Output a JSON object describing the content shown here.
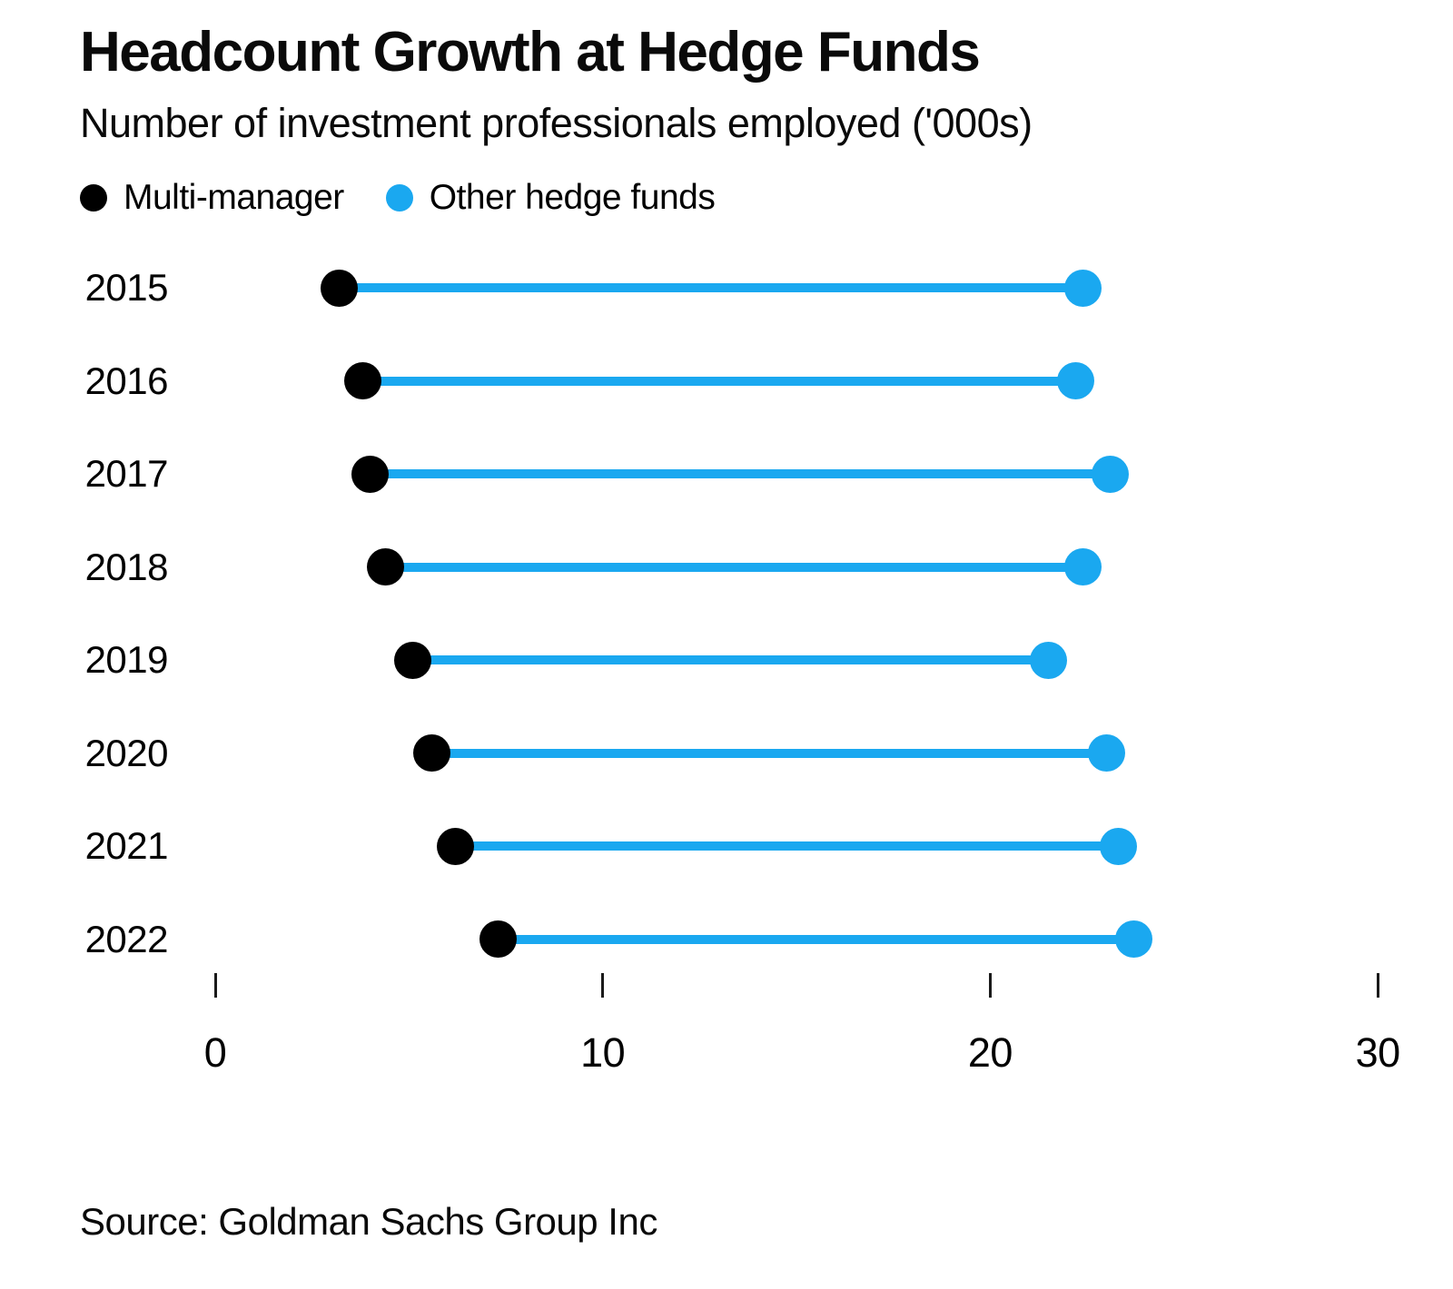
{
  "header": {
    "title": "Headcount Growth at Hedge Funds",
    "subtitle": "Number of investment professionals employed ('000s)"
  },
  "legend": [
    {
      "label": "Multi-manager",
      "color": "#000000"
    },
    {
      "label": "Other hedge funds",
      "color": "#1aa8f0"
    }
  ],
  "chart_data": {
    "type": "dumbbell",
    "orientation": "horizontal",
    "categories": [
      "2015",
      "2016",
      "2017",
      "2018",
      "2019",
      "2020",
      "2021",
      "2022"
    ],
    "series": [
      {
        "name": "Multi-manager",
        "color": "#000000",
        "values": [
          3.2,
          3.8,
          4.0,
          4.4,
          5.1,
          5.6,
          6.2,
          7.3
        ]
      },
      {
        "name": "Other hedge funds",
        "color": "#1aa8f0",
        "values": [
          22.4,
          22.2,
          23.1,
          22.4,
          21.5,
          23.0,
          23.3,
          23.7
        ]
      }
    ],
    "connector_color": "#1aa8f0",
    "xlim": [
      0,
      30
    ],
    "xticks": [
      "0",
      "10",
      "20",
      "30"
    ],
    "xtick_values": [
      0,
      10,
      20,
      30
    ],
    "grid": false,
    "legend_position": "top-left",
    "title": "Headcount Growth at Hedge Funds",
    "xlabel": "",
    "ylabel": ""
  },
  "footer": {
    "source": "Source: Goldman Sachs Group Inc"
  }
}
